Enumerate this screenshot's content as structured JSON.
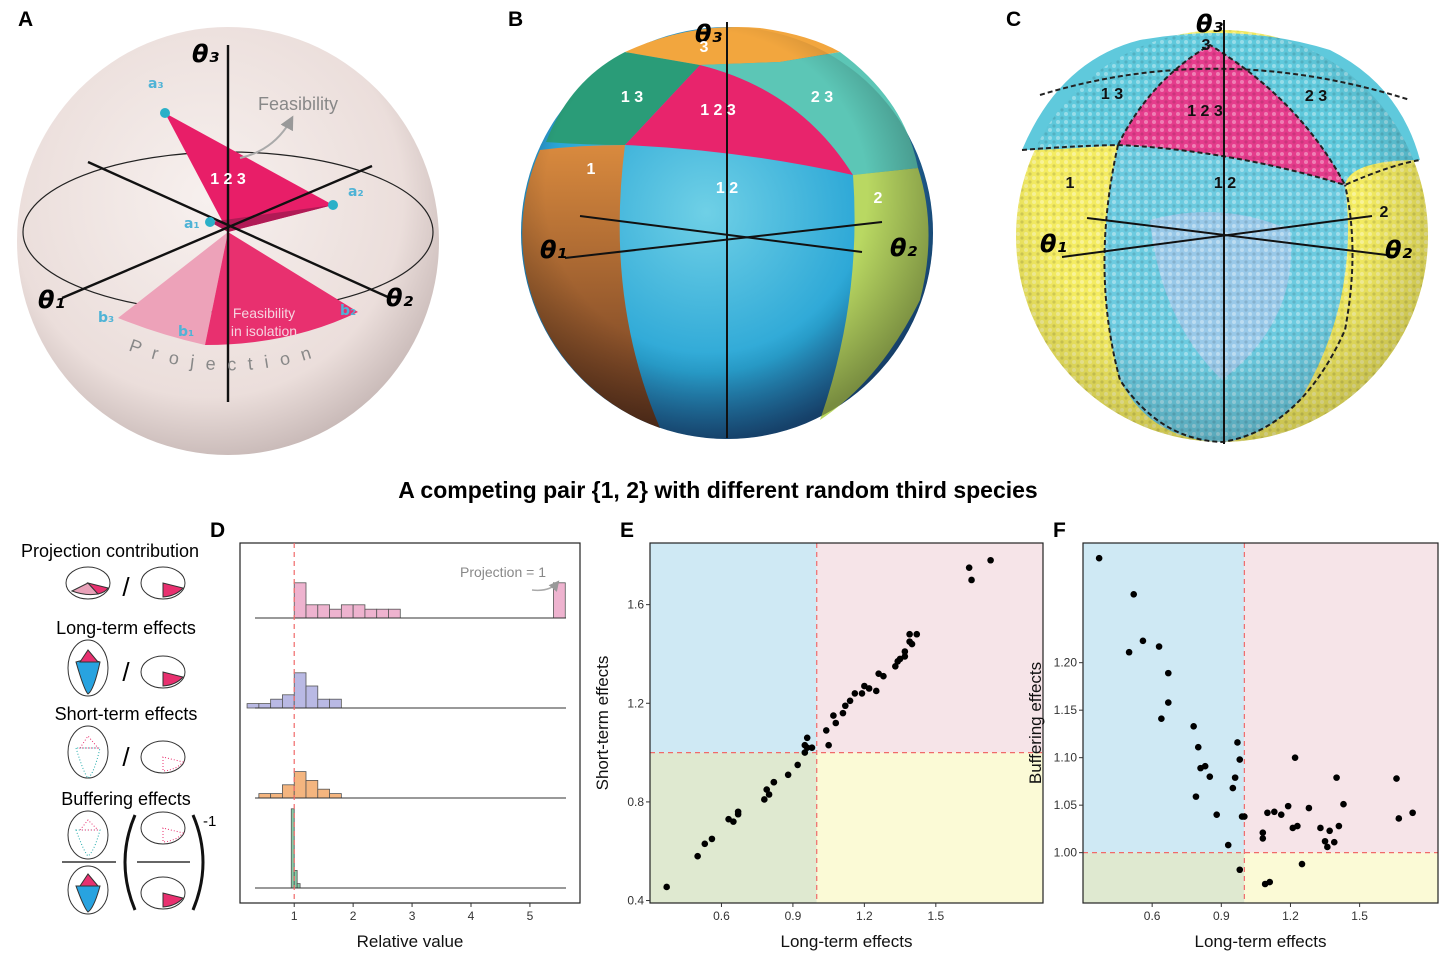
{
  "panels": [
    {
      "label": "A",
      "theta1": "θ₁",
      "theta2": "θ₂",
      "theta3": "θ₃",
      "region": "1 2 3",
      "feasibility": "Feasibility",
      "isolation": [
        "Feasibility",
        "in isolation"
      ],
      "projection": "Projection",
      "vectors": [
        "a₁",
        "a₂",
        "a₃",
        "b₁",
        "b₂",
        "b₃"
      ]
    },
    {
      "label": "B",
      "theta1": "θ₁",
      "theta2": "θ₂",
      "theta3": "θ₃",
      "regions": [
        "3",
        "1 3",
        "1 2 3",
        "2 3",
        "1",
        "1 2",
        "2"
      ]
    },
    {
      "label": "C",
      "theta1": "θ₁",
      "theta2": "θ₂",
      "theta3": "θ₃",
      "regions": [
        "3",
        "1 3",
        "1 2 3",
        "2 3",
        "1",
        "1 2",
        "2"
      ]
    }
  ],
  "title": "A competing pair {1, 2} with different random third species",
  "legend": {
    "divider": "/",
    "exponent": "-1"
  },
  "chart_data": [
    {
      "type": "histogram",
      "label": "D",
      "x_label": "Relative value",
      "xlim": [
        0.08,
        5.85
      ],
      "xticks": [
        1,
        2,
        3,
        4,
        5
      ],
      "ref_x": 1,
      "annotation": "Projection = 1",
      "series": [
        {
          "name": "Projection contribution",
          "color": "#eeb3cf",
          "bins": [
            0.8,
            1.0,
            1.2,
            1.4,
            1.6,
            1.8,
            2.0,
            2.2,
            2.4,
            2.6,
            2.8,
            3.0,
            3.2,
            3.4,
            3.6,
            3.8,
            4.0,
            4.2,
            4.4,
            4.6,
            4.8,
            5.0,
            5.2,
            5.4,
            5.6
          ],
          "values": [
            0,
            8,
            3,
            3,
            2,
            3,
            3,
            2,
            2,
            2,
            0,
            0,
            0,
            0,
            0,
            0,
            0,
            0,
            0,
            0,
            0,
            0,
            0,
            8
          ]
        },
        {
          "name": "Long-term effects",
          "color": "#b9b9e4",
          "bins": [
            0.2,
            0.4,
            0.6,
            0.8,
            1.0,
            1.2,
            1.4,
            1.6,
            1.8,
            2.0
          ],
          "values": [
            1,
            1,
            2,
            3,
            8,
            5,
            2,
            2,
            0
          ]
        },
        {
          "name": "Short-term effects",
          "color": "#f4b57f",
          "bins": [
            0.2,
            0.4,
            0.6,
            0.8,
            1.0,
            1.2,
            1.4,
            1.6,
            1.8,
            2.0
          ],
          "values": [
            0,
            1,
            1,
            3,
            6,
            4,
            2,
            1,
            0
          ]
        },
        {
          "name": "Buffering effects",
          "color": "#86cba5",
          "bins": [
            0.9,
            0.95,
            1.0,
            1.05,
            1.1,
            1.15,
            1.2
          ],
          "values": [
            0,
            18,
            4,
            1,
            0,
            0
          ]
        }
      ]
    },
    {
      "type": "scatter",
      "label": "E",
      "x_label": "Long-term effects",
      "y_label": "Short-term effects",
      "xlim": [
        0.3,
        1.95
      ],
      "ylim": [
        0.39,
        1.85
      ],
      "xticks": [
        0.6,
        0.9,
        1.2,
        1.5
      ],
      "yticks": [
        0.4,
        0.8,
        1.2,
        1.6
      ],
      "ref_x": 1,
      "ref_y": 1,
      "color": "#000000",
      "quadrant_colors": {
        "top_left": "#cfe9f4",
        "top_right": "#f6e4e8",
        "bottom_left": "#dfe9d0",
        "bottom_right": "#fbfad6"
      },
      "x": [
        0.37,
        0.5,
        0.53,
        0.56,
        0.63,
        0.65,
        0.67,
        0.67,
        0.78,
        0.79,
        0.8,
        0.82,
        0.82,
        0.88,
        0.92,
        0.95,
        0.95,
        0.96,
        0.96,
        0.98,
        1.04,
        1.05,
        1.07,
        1.08,
        1.11,
        1.12,
        1.14,
        1.16,
        1.19,
        1.2,
        1.22,
        1.25,
        1.26,
        1.28,
        1.33,
        1.34,
        1.35,
        1.37,
        1.37,
        1.39,
        1.4,
        1.39,
        1.42,
        1.64,
        1.65,
        1.73
      ],
      "values": [
        0.455,
        0.58,
        0.63,
        0.65,
        0.73,
        0.72,
        0.75,
        0.76,
        0.81,
        0.85,
        0.83,
        0.88,
        0.88,
        0.91,
        0.95,
        1.0,
        1.03,
        1.06,
        1.02,
        1.02,
        1.09,
        1.03,
        1.15,
        1.12,
        1.16,
        1.19,
        1.21,
        1.24,
        1.24,
        1.27,
        1.26,
        1.25,
        1.32,
        1.31,
        1.35,
        1.37,
        1.38,
        1.39,
        1.41,
        1.45,
        1.44,
        1.48,
        1.48,
        1.75,
        1.7,
        1.78
      ]
    },
    {
      "type": "scatter",
      "label": "F",
      "x_label": "Long-term effects",
      "y_label": "Buffering effects",
      "xlim": [
        0.3,
        1.84
      ],
      "ylim": [
        0.947,
        1.326
      ],
      "xticks": [
        0.6,
        0.9,
        1.2,
        1.5
      ],
      "yticks": [
        {
          "value": 1,
          "label": "1.00"
        },
        1.05,
        {
          "value": 1.1,
          "label": "1.10"
        },
        1.15,
        {
          "value": 1.2,
          "label": "1.20"
        }
      ],
      "ref_x": 1,
      "ref_y": 1,
      "color": "#000000",
      "quadrant_colors": {
        "top_left": "#cfe9f4",
        "top_right": "#f6e4e8",
        "bottom_left": "#dfe9d0",
        "bottom_right": "#fbfad6"
      },
      "x": [
        0.37,
        0.52,
        0.56,
        0.5,
        0.63,
        0.67,
        0.67,
        0.64,
        0.78,
        0.8,
        0.81,
        0.79,
        0.83,
        0.85,
        0.88,
        0.95,
        0.96,
        0.97,
        0.98,
        0.99,
        1.0,
        0.98,
        0.93,
        1.08,
        1.08,
        1.09,
        1.11,
        1.1,
        1.13,
        1.16,
        1.19,
        1.21,
        1.22,
        1.23,
        1.25,
        1.28,
        1.33,
        1.35,
        1.36,
        1.37,
        1.39,
        1.4,
        1.41,
        1.43,
        1.66,
        1.67,
        1.73
      ],
      "values": [
        1.31,
        1.272,
        1.223,
        1.211,
        1.217,
        1.189,
        1.158,
        1.141,
        1.133,
        1.111,
        1.089,
        1.059,
        1.091,
        1.08,
        1.04,
        1.068,
        1.079,
        1.116,
        1.098,
        1.038,
        1.038,
        0.982,
        1.008,
        1.021,
        1.015,
        0.967,
        0.969,
        1.042,
        1.043,
        1.04,
        1.049,
        1.026,
        1.1,
        1.028,
        0.988,
        1.047,
        1.026,
        1.012,
        1.006,
        1.023,
        1.011,
        1.079,
        1.028,
        1.051,
        1.078,
        1.036,
        1.042
      ]
    }
  ]
}
